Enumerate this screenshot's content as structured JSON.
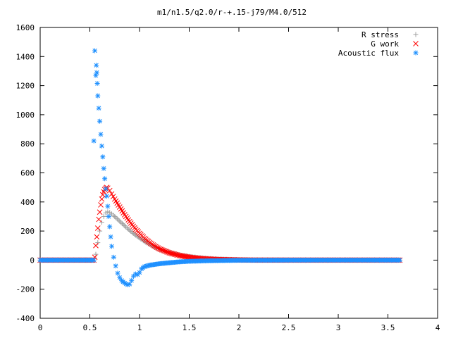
{
  "chart_data": {
    "type": "scatter",
    "title": "m1/n1.5/q2.0/r-+.15-j79/M4.0/512",
    "xlabel": "",
    "ylabel": "",
    "xlim": [
      0,
      4
    ],
    "ylim": [
      -400,
      1600
    ],
    "xticks": [
      "0",
      "0.5",
      "1",
      "1.5",
      "2",
      "2.5",
      "3",
      "3.5",
      "4"
    ],
    "yticks": [
      "-400",
      "-200",
      "0",
      "200",
      "400",
      "600",
      "800",
      "1000",
      "1200",
      "1400",
      "1600"
    ],
    "grid": false,
    "legend_position": "top-right",
    "series": [
      {
        "name": "R stress",
        "marker": "plus",
        "color": "#a0a0a0",
        "points": [
          [
            0.0,
            0
          ],
          [
            0.2,
            0
          ],
          [
            0.4,
            0
          ],
          [
            0.54,
            0
          ],
          [
            0.56,
            40
          ],
          [
            0.58,
            120
          ],
          [
            0.6,
            200
          ],
          [
            0.62,
            260
          ],
          [
            0.64,
            300
          ],
          [
            0.66,
            325
          ],
          [
            0.68,
            332
          ],
          [
            0.7,
            328
          ],
          [
            0.72,
            318
          ],
          [
            0.75,
            300
          ],
          [
            0.8,
            268
          ],
          [
            0.85,
            236
          ],
          [
            0.9,
            205
          ],
          [
            0.95,
            177
          ],
          [
            1.0,
            152
          ],
          [
            1.05,
            128
          ],
          [
            1.1,
            108
          ],
          [
            1.15,
            90
          ],
          [
            1.2,
            75
          ],
          [
            1.3,
            52
          ],
          [
            1.4,
            36
          ],
          [
            1.5,
            25
          ],
          [
            1.6,
            17
          ],
          [
            1.7,
            11
          ],
          [
            1.8,
            7
          ],
          [
            1.9,
            5
          ],
          [
            2.0,
            3
          ],
          [
            2.2,
            1
          ],
          [
            2.5,
            0
          ],
          [
            3.0,
            0
          ],
          [
            3.5,
            0
          ],
          [
            3.62,
            0
          ]
        ]
      },
      {
        "name": "G work",
        "marker": "cross",
        "color": "#ff0000",
        "points": [
          [
            0.0,
            0
          ],
          [
            0.2,
            0
          ],
          [
            0.4,
            0
          ],
          [
            0.54,
            0
          ],
          [
            0.55,
            20
          ],
          [
            0.56,
            100
          ],
          [
            0.57,
            160
          ],
          [
            0.58,
            220
          ],
          [
            0.59,
            280
          ],
          [
            0.6,
            330
          ],
          [
            0.61,
            380
          ],
          [
            0.62,
            420
          ],
          [
            0.63,
            450
          ],
          [
            0.64,
            470
          ],
          [
            0.65,
            485
          ],
          [
            0.66,
            495
          ],
          [
            0.67,
            500
          ],
          [
            0.68,
            495
          ],
          [
            0.7,
            478
          ],
          [
            0.72,
            455
          ],
          [
            0.75,
            420
          ],
          [
            0.8,
            365
          ],
          [
            0.85,
            312
          ],
          [
            0.9,
            265
          ],
          [
            0.95,
            222
          ],
          [
            1.0,
            184
          ],
          [
            1.05,
            150
          ],
          [
            1.1,
            122
          ],
          [
            1.15,
            98
          ],
          [
            1.2,
            78
          ],
          [
            1.3,
            50
          ],
          [
            1.4,
            32
          ],
          [
            1.5,
            20
          ],
          [
            1.6,
            12
          ],
          [
            1.7,
            7
          ],
          [
            1.8,
            4
          ],
          [
            2.0,
            1
          ],
          [
            2.2,
            0
          ],
          [
            2.5,
            0
          ],
          [
            3.0,
            0
          ],
          [
            3.5,
            0
          ],
          [
            3.62,
            0
          ]
        ]
      },
      {
        "name": "Acoustic flux",
        "marker": "star",
        "color": "#1e90ff",
        "points": [
          [
            0.0,
            0
          ],
          [
            0.2,
            0
          ],
          [
            0.4,
            0
          ],
          [
            0.5,
            0
          ],
          [
            0.54,
            0
          ],
          [
            0.54,
            820
          ],
          [
            0.55,
            1440
          ],
          [
            0.56,
            1270
          ],
          [
            0.565,
            1340
          ],
          [
            0.57,
            1290
          ],
          [
            0.575,
            1215
          ],
          [
            0.58,
            1130
          ],
          [
            0.59,
            1045
          ],
          [
            0.6,
            955
          ],
          [
            0.61,
            865
          ],
          [
            0.62,
            785
          ],
          [
            0.63,
            710
          ],
          [
            0.64,
            630
          ],
          [
            0.65,
            560
          ],
          [
            0.66,
            490
          ],
          [
            0.67,
            440
          ],
          [
            0.68,
            370
          ],
          [
            0.69,
            300
          ],
          [
            0.7,
            230
          ],
          [
            0.71,
            160
          ],
          [
            0.72,
            95
          ],
          [
            0.74,
            20
          ],
          [
            0.76,
            -40
          ],
          [
            0.78,
            -90
          ],
          [
            0.8,
            -120
          ],
          [
            0.82,
            -140
          ],
          [
            0.85,
            -158
          ],
          [
            0.88,
            -170
          ],
          [
            0.9,
            -165
          ],
          [
            0.92,
            -140
          ],
          [
            0.94,
            -110
          ],
          [
            0.96,
            -95
          ],
          [
            0.98,
            -100
          ],
          [
            1.0,
            -85
          ],
          [
            1.02,
            -60
          ],
          [
            1.05,
            -45
          ],
          [
            1.1,
            -35
          ],
          [
            1.2,
            -25
          ],
          [
            1.3,
            -18
          ],
          [
            1.4,
            -12
          ],
          [
            1.5,
            -8
          ],
          [
            1.7,
            -4
          ],
          [
            2.0,
            -1
          ],
          [
            2.5,
            0
          ],
          [
            3.0,
            0
          ],
          [
            3.5,
            0
          ],
          [
            3.62,
            0
          ]
        ]
      }
    ]
  }
}
